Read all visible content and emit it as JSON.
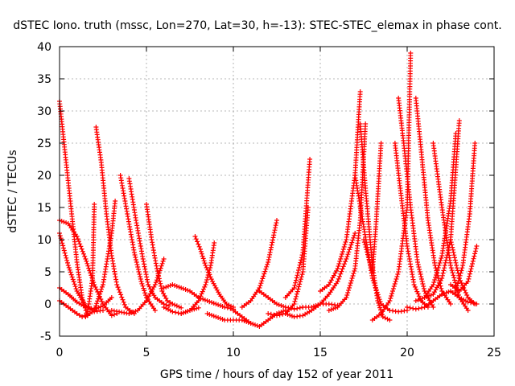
{
  "chart_data": {
    "type": "scatter",
    "title": "dSTEC Iono. truth (mssc, Lon=270, Lat=30, h=-13): STEC-STEC_elemax in phase cont.",
    "xlabel": "GPS time / hours of day 152 of year 2011",
    "ylabel": "dSTEC  / TECUs",
    "xlim": [
      0,
      25
    ],
    "ylim": [
      -5,
      40
    ],
    "xticks": [
      0,
      5,
      10,
      15,
      20,
      25
    ],
    "yticks": [
      -5,
      0,
      5,
      10,
      15,
      20,
      25,
      30,
      35,
      40
    ],
    "grid": true,
    "marker": "+",
    "color": "#ff0000",
    "series": [
      {
        "x": [
          0.0,
          0.3,
          0.7,
          1.0,
          1.3,
          1.6
        ],
        "y": [
          31.5,
          24.0,
          14.0,
          6.5,
          1.0,
          -1.8
        ]
      },
      {
        "x": [
          0.0,
          0.5,
          1.0,
          1.3,
          1.6,
          1.9,
          2.0
        ],
        "y": [
          0.5,
          -0.5,
          -1.5,
          -2.0,
          -1.6,
          4.0,
          15.5
        ]
      },
      {
        "x": [
          0.0,
          0.5,
          1.0,
          1.5,
          2.0,
          2.5,
          3.0,
          3.3
        ],
        "y": [
          13.0,
          12.5,
          10.5,
          7.0,
          3.0,
          0.0,
          -1.8,
          -1.5
        ]
      },
      {
        "x": [
          0.0,
          0.5,
          1.0,
          1.5,
          2.0,
          2.5
        ],
        "y": [
          11.0,
          6.0,
          2.0,
          -0.3,
          -1.2,
          -1.0
        ]
      },
      {
        "x": [
          2.1,
          2.4,
          2.7,
          3.0,
          3.3,
          3.8,
          4.3
        ],
        "y": [
          27.5,
          22.0,
          14.0,
          7.5,
          3.0,
          -0.5,
          -1.5
        ]
      },
      {
        "x": [
          1.5,
          2.0,
          2.5,
          3.0,
          3.2
        ],
        "y": [
          -2.0,
          -1.0,
          3.0,
          11.0,
          16.0
        ]
      },
      {
        "x": [
          3.5,
          3.9,
          4.3,
          4.7,
          5.0,
          5.5
        ],
        "y": [
          20.0,
          14.0,
          8.0,
          3.5,
          1.0,
          -1.0
        ]
      },
      {
        "x": [
          4.0,
          4.4,
          4.8,
          5.1,
          5.5,
          6.0,
          6.3
        ],
        "y": [
          19.5,
          13.0,
          7.0,
          3.0,
          1.0,
          0.0,
          -0.3
        ]
      },
      {
        "x": [
          5.0,
          5.3,
          5.6,
          5.9,
          6.2,
          6.5,
          7.0
        ],
        "y": [
          15.5,
          10.0,
          5.5,
          2.0,
          0.5,
          0.0,
          -0.6
        ]
      },
      {
        "x": [
          3.0,
          4.0,
          4.5,
          5.0,
          5.5,
          6.0
        ],
        "y": [
          -1.0,
          -1.5,
          -1.0,
          0.5,
          3.0,
          7.0
        ]
      },
      {
        "x": [
          0.0,
          0.5,
          1.0,
          1.5,
          2.0,
          2.5,
          3.0
        ],
        "y": [
          2.5,
          1.5,
          0.3,
          -0.5,
          -0.8,
          -0.3,
          1.0
        ]
      },
      {
        "x": [
          6.0,
          6.5,
          7.0,
          7.5,
          8.0
        ],
        "y": [
          -0.5,
          -1.2,
          -1.5,
          -1.0,
          -0.6
        ]
      },
      {
        "x": [
          7.8,
          8.1,
          8.4,
          8.8,
          9.2,
          9.6,
          10.0
        ],
        "y": [
          10.5,
          8.5,
          6.0,
          3.5,
          1.5,
          0.0,
          -0.5
        ]
      },
      {
        "x": [
          7.0,
          7.5,
          8.0,
          8.4,
          8.7,
          8.9
        ],
        "y": [
          -1.5,
          -1.0,
          0.5,
          3.0,
          6.0,
          9.5
        ]
      },
      {
        "x": [
          6.0,
          6.5,
          7.0,
          7.5,
          8.0,
          8.5,
          9.0,
          9.5,
          10.0
        ],
        "y": [
          2.5,
          3.0,
          2.5,
          2.0,
          1.0,
          0.5,
          0.0,
          -0.5,
          -0.8
        ]
      },
      {
        "x": [
          8.5,
          9.0,
          9.5,
          10.0,
          10.5,
          11.0
        ],
        "y": [
          -1.5,
          -2.0,
          -2.5,
          -2.5,
          -2.5,
          -3.0
        ]
      },
      {
        "x": [
          10.0,
          10.5,
          11.0,
          11.5,
          12.0,
          12.5,
          13.0
        ],
        "y": [
          -1.0,
          -2.0,
          -3.0,
          -3.5,
          -2.5,
          -1.5,
          -1.0
        ]
      },
      {
        "x": [
          10.5,
          11.0,
          11.5,
          12.0,
          12.5
        ],
        "y": [
          -0.5,
          0.5,
          2.5,
          6.5,
          13.0
        ]
      },
      {
        "x": [
          11.5,
          12.0,
          12.5,
          13.0,
          13.5,
          14.0
        ],
        "y": [
          2.0,
          1.0,
          0.0,
          -0.5,
          -0.8,
          -0.5
        ]
      },
      {
        "x": [
          12.0,
          12.5,
          13.0,
          13.5,
          14.0,
          14.3
        ],
        "y": [
          -1.5,
          -1.8,
          -1.5,
          0.0,
          5.0,
          15.0
        ]
      },
      {
        "x": [
          13.0,
          13.5,
          14.0,
          14.4
        ],
        "y": [
          1.0,
          2.5,
          8.0,
          22.5
        ]
      },
      {
        "x": [
          13.0,
          13.5,
          14.0,
          14.5,
          15.0,
          15.5,
          16.0
        ],
        "y": [
          -1.5,
          -2.0,
          -1.8,
          -1.0,
          0.0,
          0.0,
          -0.2
        ]
      },
      {
        "x": [
          14.0,
          14.5,
          15.0,
          15.5,
          16.0,
          16.5,
          17.0
        ],
        "y": [
          -0.5,
          -0.5,
          0.0,
          1.5,
          3.5,
          7.0,
          11.0
        ]
      },
      {
        "x": [
          15.0,
          15.5,
          16.0,
          16.5,
          17.0,
          17.3
        ],
        "y": [
          2.0,
          3.0,
          5.5,
          10.0,
          20.0,
          33.0
        ]
      },
      {
        "x": [
          15.5,
          16.0,
          16.5,
          17.0,
          17.3,
          17.6
        ],
        "y": [
          -1.0,
          -0.5,
          1.0,
          5.5,
          13.0,
          28.0
        ]
      },
      {
        "x": [
          17.0,
          17.5,
          18.0,
          18.5,
          19.0,
          19.5,
          20.0
        ],
        "y": [
          20.0,
          12.0,
          4.0,
          0.0,
          -1.0,
          -1.2,
          -1.0
        ]
      },
      {
        "x": [
          17.3,
          17.6,
          18.0,
          18.3,
          18.6,
          19.0
        ],
        "y": [
          28.0,
          18.0,
          6.0,
          0.5,
          -2.0,
          -2.5
        ]
      },
      {
        "x": [
          17.5,
          18.0,
          18.2,
          18.5
        ],
        "y": [
          10.0,
          5.0,
          12.0,
          25.0
        ]
      },
      {
        "x": [
          18.0,
          18.5,
          19.0,
          19.5,
          20.0,
          20.2
        ],
        "y": [
          -2.5,
          -1.5,
          0.5,
          5.0,
          15.0,
          39.0
        ]
      },
      {
        "x": [
          19.5,
          19.8,
          20.2,
          20.6,
          21.0,
          21.5
        ],
        "y": [
          32.0,
          25.0,
          15.0,
          6.5,
          2.0,
          -0.5
        ]
      },
      {
        "x": [
          20.5,
          20.8,
          21.2,
          21.6,
          22.0,
          22.5
        ],
        "y": [
          32.0,
          24.0,
          13.0,
          6.0,
          2.0,
          0.0
        ]
      },
      {
        "x": [
          19.3,
          19.6,
          20.0,
          20.4,
          20.8,
          21.2
        ],
        "y": [
          25.0,
          18.0,
          9.0,
          3.0,
          0.5,
          -0.5
        ]
      },
      {
        "x": [
          20.5,
          21.0,
          21.5,
          22.0,
          22.5,
          22.8
        ],
        "y": [
          0.5,
          1.0,
          3.0,
          7.5,
          16.0,
          26.5
        ]
      },
      {
        "x": [
          21.0,
          21.5,
          22.0,
          22.5,
          23.0
        ],
        "y": [
          1.0,
          1.5,
          4.0,
          10.0,
          28.5
        ]
      },
      {
        "x": [
          21.5,
          22.0,
          22.5,
          23.0,
          23.5
        ],
        "y": [
          25.0,
          15.0,
          6.0,
          1.0,
          -1.0
        ]
      },
      {
        "x": [
          22.5,
          23.0,
          23.5,
          23.9
        ],
        "y": [
          10.0,
          4.0,
          1.0,
          0.0
        ]
      },
      {
        "x": [
          22.5,
          23.0,
          23.5,
          24.0
        ],
        "y": [
          3.0,
          2.0,
          3.5,
          9.0
        ]
      },
      {
        "x": [
          22.8,
          23.2,
          23.6,
          23.9
        ],
        "y": [
          2.0,
          6.0,
          14.0,
          25.0
        ]
      },
      {
        "x": [
          20.0,
          20.5,
          21.0,
          21.5,
          22.0,
          22.5,
          23.0,
          23.5,
          24.0
        ],
        "y": [
          -0.5,
          -0.8,
          -0.5,
          0.5,
          1.5,
          2.0,
          1.0,
          0.3,
          0.0
        ]
      }
    ]
  }
}
